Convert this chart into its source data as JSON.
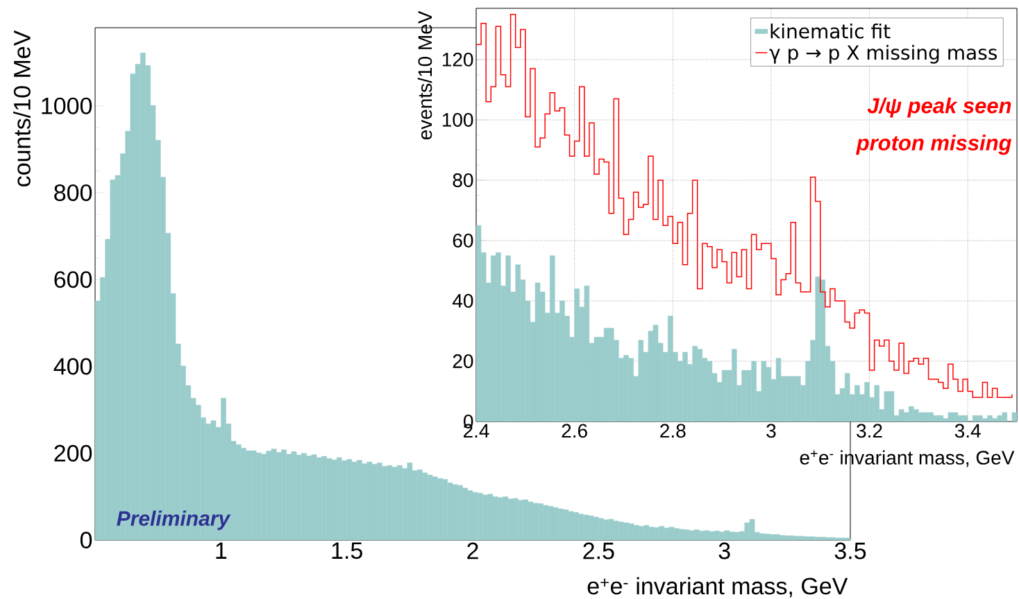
{
  "chart_data": [
    {
      "type": "histogram",
      "xlabel": "e$^{+}$e$^{-}$ invariant mass, GeV",
      "ylabel": "counts/10 MeV",
      "color": "#9acccc",
      "bins": [
        0.5,
        0.52,
        0.54,
        0.56,
        0.58,
        0.6,
        0.62,
        0.64,
        0.66,
        0.68,
        0.7,
        0.72,
        0.74,
        0.76,
        0.78,
        0.8,
        0.82,
        0.84,
        0.86,
        0.88,
        0.9,
        0.92,
        0.94,
        0.96,
        0.98,
        1,
        1.02,
        1.04,
        1.06,
        1.08,
        1.1,
        1.12,
        1.14,
        1.16,
        1.18,
        1.2,
        1.22,
        1.24,
        1.26,
        1.28,
        1.3,
        1.32,
        1.34,
        1.36,
        1.38,
        1.4,
        1.42,
        1.44,
        1.46,
        1.48,
        1.5,
        1.52,
        1.54,
        1.56,
        1.58,
        1.6,
        1.62,
        1.64,
        1.66,
        1.68,
        1.7,
        1.72,
        1.74,
        1.76,
        1.78,
        1.8,
        1.82,
        1.84,
        1.86,
        1.88,
        1.9,
        1.92,
        1.94,
        1.96,
        1.98,
        2,
        2.02,
        2.04,
        2.06,
        2.08,
        2.1,
        2.12,
        2.14,
        2.16,
        2.18,
        2.2,
        2.22,
        2.24,
        2.26,
        2.28,
        2.3,
        2.32,
        2.34,
        2.36,
        2.38,
        2.4,
        2.42,
        2.44,
        2.46,
        2.48,
        2.5,
        2.52,
        2.54,
        2.56,
        2.58,
        2.6,
        2.62,
        2.64,
        2.66,
        2.68,
        2.7,
        2.72,
        2.74,
        2.76,
        2.78,
        2.8,
        2.82,
        2.84,
        2.86,
        2.88,
        2.9,
        2.92,
        2.94,
        2.96,
        2.98,
        3,
        3.02,
        3.04,
        3.06,
        3.08,
        3.1,
        3.12,
        3.14,
        3.16,
        3.18,
        3.2,
        3.22,
        3.24,
        3.26,
        3.28,
        3.3,
        3.32,
        3.34,
        3.36,
        3.38,
        3.4,
        3.42,
        3.44,
        3.46,
        3.48,
        3.5
      ],
      "values": [
        551,
        605,
        693,
        830,
        840,
        890,
        942,
        1074,
        1096,
        1122,
        1093,
        1001,
        921,
        836,
        707,
        568,
        452,
        401,
        356,
        327,
        311,
        282,
        268,
        275,
        260,
        327,
        268,
        228,
        220,
        212,
        206,
        206,
        201,
        198,
        205,
        210,
        202,
        208,
        198,
        204,
        196,
        200,
        194,
        197,
        190,
        193,
        188,
        185,
        190,
        183,
        186,
        180,
        184,
        176,
        180,
        175,
        178,
        170,
        172,
        168,
        172,
        165,
        178,
        160,
        162,
        155,
        150,
        146,
        142,
        140,
        132,
        128,
        126,
        120,
        114,
        110,
        108,
        104,
        106,
        100,
        98,
        100,
        95,
        96,
        92,
        93,
        88,
        85,
        84,
        80,
        78,
        75,
        72,
        70,
        66,
        64,
        60,
        58,
        56,
        53,
        50,
        47,
        48,
        44,
        42,
        40,
        38,
        34,
        32,
        34,
        30,
        29,
        32,
        28,
        30,
        27,
        25,
        24,
        22,
        24,
        21,
        22,
        20,
        21,
        19,
        22,
        19,
        18,
        20,
        40,
        48,
        18,
        15,
        14,
        13,
        13,
        11,
        10,
        10,
        9,
        9,
        8,
        8,
        7,
        7,
        6,
        6,
        5,
        5,
        5
      ],
      "xlim": [
        0.5,
        3.5
      ],
      "ylim": [
        0,
        1180
      ],
      "xticks": [
        1,
        1.5,
        2,
        2.5,
        3,
        3.5
      ],
      "yticks": [
        0,
        200,
        400,
        600,
        800,
        1000
      ],
      "annotations": [
        "Preliminary"
      ]
    },
    {
      "type": "histogram",
      "xlabel": "e$^{+}$e$^{-}$ invariant mass, GeV",
      "ylabel": "events/10 MeV",
      "bins": [
        2.4,
        2.41,
        2.42,
        2.43,
        2.44,
        2.45,
        2.46,
        2.47,
        2.48,
        2.49,
        2.5,
        2.51,
        2.52,
        2.53,
        2.54,
        2.55,
        2.56,
        2.57,
        2.58,
        2.59,
        2.6,
        2.61,
        2.62,
        2.63,
        2.64,
        2.65,
        2.66,
        2.67,
        2.68,
        2.69,
        2.7,
        2.71,
        2.72,
        2.73,
        2.74,
        2.75,
        2.76,
        2.77,
        2.78,
        2.79,
        2.8,
        2.81,
        2.82,
        2.83,
        2.84,
        2.85,
        2.86,
        2.87,
        2.88,
        2.89,
        2.9,
        2.91,
        2.92,
        2.93,
        2.94,
        2.95,
        2.96,
        2.97,
        2.98,
        2.99,
        3,
        3.01,
        3.02,
        3.03,
        3.04,
        3.05,
        3.06,
        3.07,
        3.08,
        3.09,
        3.1,
        3.11,
        3.12,
        3.13,
        3.14,
        3.15,
        3.16,
        3.17,
        3.18,
        3.19,
        3.2,
        3.21,
        3.22,
        3.23,
        3.24,
        3.25,
        3.26,
        3.27,
        3.28,
        3.29,
        3.3,
        3.31,
        3.32,
        3.33,
        3.34,
        3.35,
        3.36,
        3.37,
        3.38,
        3.39,
        3.4,
        3.41,
        3.42,
        3.43,
        3.44,
        3.45,
        3.46,
        3.47,
        3.48,
        3.49,
        3.5
      ],
      "series": [
        {
          "name": "kinematic fit",
          "color": "#9acccc",
          "values": [
            65,
            56,
            46,
            55,
            56,
            45,
            55,
            43,
            52,
            47,
            40,
            33,
            46,
            43,
            36,
            55,
            36,
            40,
            35,
            28,
            44,
            38,
            45,
            26,
            28,
            28,
            31,
            31,
            27,
            21,
            22,
            21,
            15,
            27,
            23,
            30,
            32,
            26,
            23,
            35,
            23,
            20,
            23,
            19,
            25,
            24,
            21,
            20,
            16,
            13,
            17,
            17,
            24,
            12,
            17,
            17,
            20,
            10,
            20,
            18,
            14,
            21,
            15,
            15,
            15,
            15,
            12,
            20,
            27,
            48,
            47,
            25,
            20,
            9,
            11,
            16,
            9,
            12,
            9,
            13,
            8,
            12,
            4,
            10,
            10,
            2,
            4,
            3,
            5,
            4,
            3,
            3,
            3,
            2,
            2,
            1,
            3,
            3,
            2,
            2,
            0,
            2,
            2,
            1,
            2,
            1,
            2,
            3,
            0,
            3
          ]
        },
        {
          "name": "γ p → p X missing mass",
          "color": "#ff0000",
          "type": "step",
          "x": [
            2.4,
            2.41,
            2.42,
            2.43,
            2.44,
            2.45,
            2.46,
            2.47,
            2.48,
            2.49,
            2.5,
            2.51,
            2.52,
            2.53,
            2.54,
            2.55,
            2.56,
            2.57,
            2.58,
            2.59,
            2.6,
            2.61,
            2.62,
            2.63,
            2.64,
            2.65,
            2.66,
            2.67,
            2.68,
            2.69,
            2.7,
            2.71,
            2.72,
            2.73,
            2.74,
            2.75,
            2.76,
            2.77,
            2.78,
            2.79,
            2.8,
            2.81,
            2.82,
            2.83,
            2.84,
            2.85,
            2.86,
            2.87,
            2.88,
            2.89,
            2.9,
            2.91,
            2.92,
            2.93,
            2.94,
            2.95,
            2.96,
            2.97,
            2.98,
            2.99,
            3,
            3.01,
            3.02,
            3.03,
            3.04,
            3.05,
            3.06,
            3.07,
            3.08,
            3.09,
            3.1,
            3.11,
            3.12,
            3.13,
            3.14,
            3.15,
            3.16,
            3.17,
            3.18,
            3.19,
            3.2,
            3.21,
            3.22,
            3.23,
            3.24,
            3.25,
            3.26,
            3.27,
            3.28,
            3.29,
            3.3,
            3.31,
            3.32,
            3.33,
            3.34,
            3.35,
            3.36,
            3.37,
            3.38,
            3.39,
            3.4,
            3.41,
            3.42,
            3.43,
            3.44,
            3.45,
            3.46,
            3.47,
            3.48,
            3.49
          ],
          "values": [
            125,
            132,
            106,
            111,
            131,
            115,
            111,
            135,
            124,
            130,
            101,
            117,
            91,
            94,
            102,
            109,
            103,
            104,
            95,
            88,
            93,
            111,
            88,
            99,
            82,
            87,
            86,
            69,
            107,
            74,
            62,
            67,
            76,
            71,
            72,
            88,
            67,
            80,
            65,
            68,
            59,
            66,
            52,
            69,
            80,
            44,
            59,
            58,
            51,
            57,
            53,
            46,
            56,
            48,
            57,
            44,
            62,
            57,
            59,
            59,
            54,
            42,
            47,
            49,
            66,
            46,
            43,
            43,
            81,
            73,
            43,
            38,
            44,
            40,
            40,
            33,
            31,
            36,
            37,
            36,
            17,
            27,
            25,
            27,
            20,
            17,
            26,
            16,
            20,
            21,
            19,
            21,
            14,
            14,
            13,
            11,
            19,
            14,
            10,
            14,
            10,
            8,
            8,
            13,
            8,
            11,
            8,
            8,
            8,
            9
          ]
        }
      ],
      "xlim": [
        2.4,
        3.5
      ],
      "ylim": [
        0,
        137
      ],
      "xticks": [
        2.4,
        2.6,
        2.8,
        3,
        3.2,
        3.4
      ],
      "yticks": [
        0,
        20,
        40,
        60,
        80,
        100,
        120
      ],
      "grid": true,
      "legend": "top right",
      "annotations": [
        "J/ψ  peak seen",
        "proton missing"
      ]
    }
  ]
}
